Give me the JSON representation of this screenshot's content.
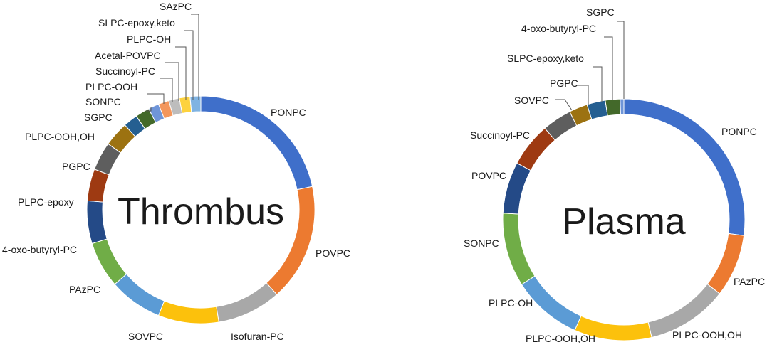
{
  "chart_data": [
    {
      "type": "pie",
      "center_label": "Thrombus",
      "slices": [
        {
          "label": "PONPC",
          "value": 21.5,
          "color": "#3f6fca"
        },
        {
          "label": "POVPC",
          "value": 16.5,
          "color": "#ec7a30"
        },
        {
          "label": "Isofuran-PC",
          "value": 9.0,
          "color": "#a8a8a8"
        },
        {
          "label": "SOVPC",
          "value": 8.5,
          "color": "#fcc10c"
        },
        {
          "label": "PAzPC",
          "value": 7.5,
          "color": "#5b9bd5"
        },
        {
          "label": "4-oxo-butyryl-PC",
          "value": 6.5,
          "color": "#70ad47"
        },
        {
          "label": "PLPC-epoxy",
          "value": 6.0,
          "color": "#244a87"
        },
        {
          "label": "PGPC",
          "value": 4.5,
          "color": "#9e3a12"
        },
        {
          "label": "PLPC-OOH,OH",
          "value": 4.0,
          "color": "#5e5e5e"
        },
        {
          "label": "SGPC",
          "value": 3.5,
          "color": "#9c7211"
        },
        {
          "label": "SONPC",
          "value": 2.0,
          "color": "#255f91"
        },
        {
          "label": "PLPC-OOH",
          "value": 2.0,
          "color": "#43692a"
        },
        {
          "label": "Succinoyl-PC",
          "value": 1.5,
          "color": "#6f95d8"
        },
        {
          "label": "Acetal-POVPC",
          "value": 1.5,
          "color": "#f3965c"
        },
        {
          "label": "PLPC-OH",
          "value": 1.5,
          "color": "#bdbdbd"
        },
        {
          "label": "SLPC-epoxy,keto",
          "value": 1.5,
          "color": "#fdd23e"
        },
        {
          "label": "SAzPC",
          "value": 1.5,
          "color": "#7fb3e2"
        }
      ]
    },
    {
      "type": "pie",
      "center_label": "Plasma",
      "slices": [
        {
          "label": "PONPC",
          "value": 27.5,
          "color": "#3f6fca"
        },
        {
          "label": "PAzPC",
          "value": 8.5,
          "color": "#ec7a30"
        },
        {
          "label": "PLPC-OOH,OH",
          "value": 11.0,
          "color": "#a8a8a8"
        },
        {
          "label": "PLPC-OOH,OH",
          "value": 10.5,
          "color": "#fcc10c"
        },
        {
          "label": "PLPC-OH",
          "value": 9.5,
          "color": "#5b9bd5"
        },
        {
          "label": "SONPC",
          "value": 10.0,
          "color": "#70ad47"
        },
        {
          "label": "POVPC",
          "value": 7.0,
          "color": "#244a87"
        },
        {
          "label": "Succinoyl-PC",
          "value": 6.0,
          "color": "#9e3a12"
        },
        {
          "label": "SOVPC",
          "value": 4.0,
          "color": "#5e5e5e"
        },
        {
          "label": "PGPC",
          "value": 2.5,
          "color": "#9c7211"
        },
        {
          "label": "SLPC-epoxy,keto",
          "value": 2.5,
          "color": "#255f91"
        },
        {
          "label": "4-oxo-butyryl-PC",
          "value": 2.0,
          "color": "#43692a"
        },
        {
          "label": "SGPC",
          "value": 0.5,
          "color": "#6f95d8"
        }
      ]
    }
  ]
}
